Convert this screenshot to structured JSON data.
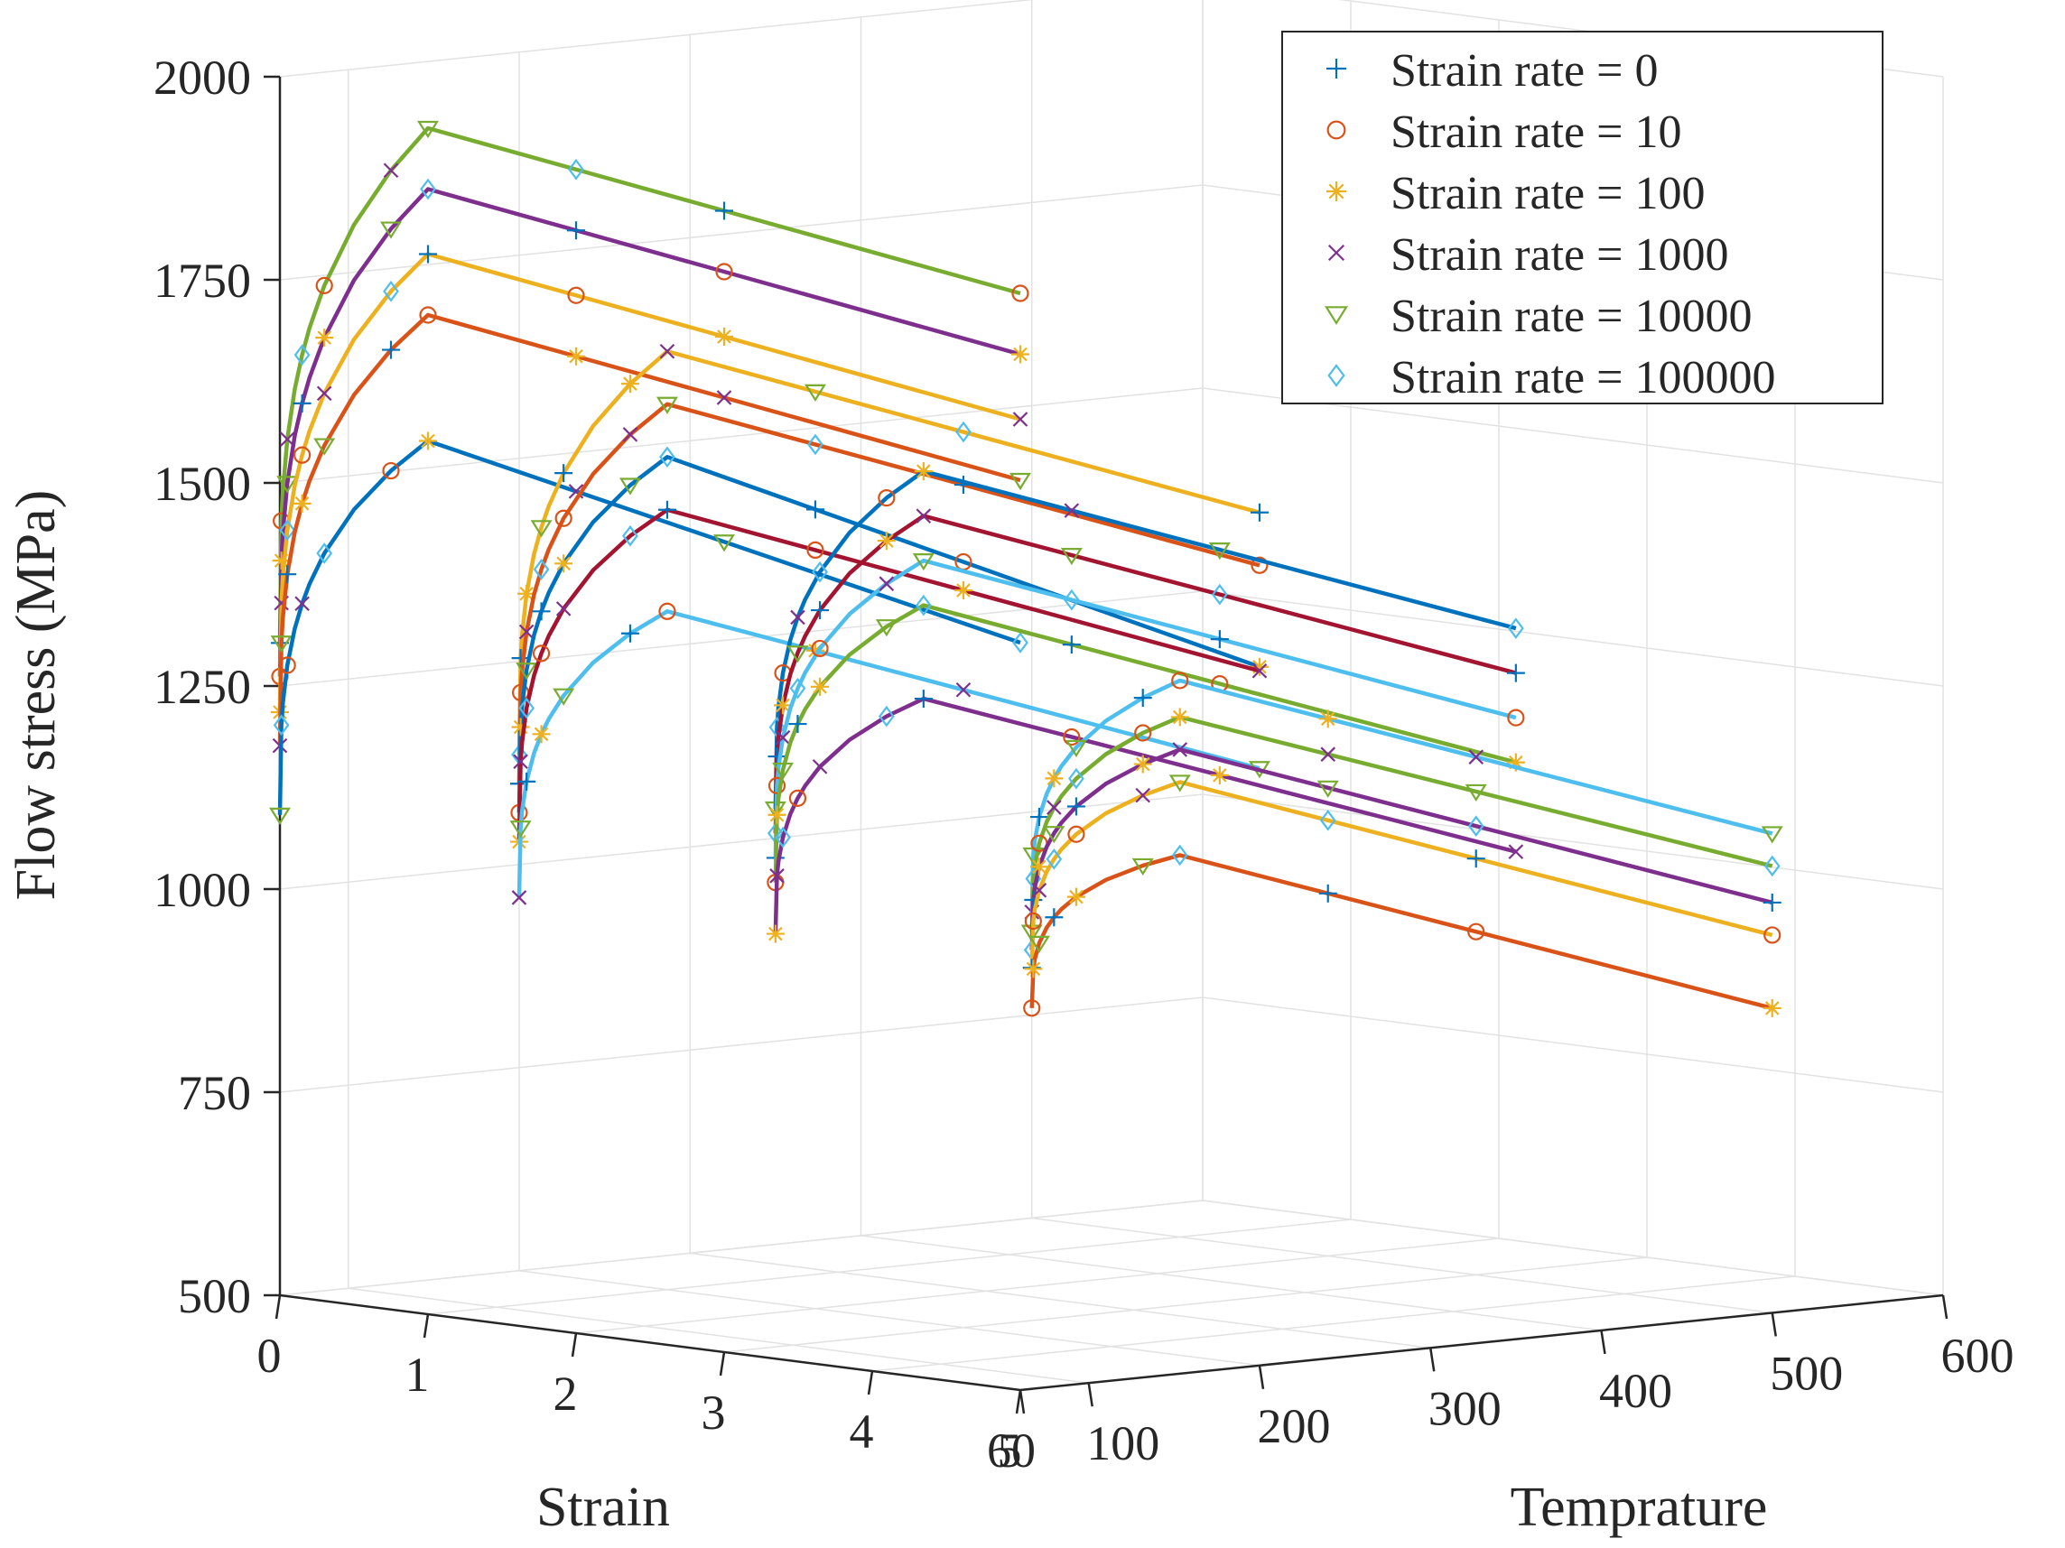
{
  "chart_data": {
    "type": "line",
    "subtype": "3d-line",
    "title": "",
    "xlabel": "Strain",
    "ylabel": "Temprature",
    "zlabel": "Flow stress (MPa)",
    "xlim": [
      0,
      5
    ],
    "ylim": [
      60,
      600
    ],
    "zlim": [
      500,
      2000
    ],
    "x_ticks": [
      "0",
      "1",
      "2",
      "3",
      "4",
      "5"
    ],
    "y_ticks": [
      "60",
      "100",
      "200",
      "300",
      "400",
      "500",
      "600"
    ],
    "z_ticks": [
      "500",
      "750",
      "1000",
      "1250",
      "1500",
      "1750",
      "2000"
    ],
    "grid": true,
    "legend_position": "top-right",
    "legend": [
      {
        "label": "Strain rate = 0",
        "marker": "+",
        "color": "#0072BD"
      },
      {
        "label": "Strain rate = 10",
        "marker": "o",
        "color": "#D95319"
      },
      {
        "label": "Strain rate = 100",
        "marker": "*",
        "color": "#EDB120"
      },
      {
        "label": "Strain rate = 1000",
        "marker": "x",
        "color": "#7E2F8E"
      },
      {
        "label": "Strain rate = 10000",
        "marker": "triangle-down",
        "color": "#77AC30"
      },
      {
        "label": "Strain rate = 100000",
        "marker": "diamond",
        "color": "#4DBEEE"
      }
    ],
    "strain_points": [
      0,
      0.01,
      0.02,
      0.05,
      0.1,
      0.15,
      0.2,
      0.3,
      0.5,
      0.75,
      1.0,
      2.0,
      3.0,
      5.0
    ],
    "series": [
      {
        "temperature": 60,
        "color": "#77AC30",
        "peak": 1960,
        "end": 1850
      },
      {
        "temperature": 60,
        "color": "#7E2F8E",
        "peak": 1885,
        "end": 1775
      },
      {
        "temperature": 60,
        "color": "#EDB120",
        "peak": 1805,
        "end": 1695
      },
      {
        "temperature": 60,
        "color": "#D95319",
        "peak": 1730,
        "end": 1620
      },
      {
        "temperature": 60,
        "color": "#0072BD",
        "peak": 1575,
        "end": 1420
      },
      {
        "temperature": 200,
        "color": "#EDB120",
        "peak": 1655,
        "end": 1550
      },
      {
        "temperature": 200,
        "color": "#D95319",
        "peak": 1590,
        "end": 1485
      },
      {
        "temperature": 200,
        "color": "#0072BD",
        "peak": 1525,
        "end": 1360
      },
      {
        "temperature": 200,
        "color": "#A2142F",
        "peak": 1460,
        "end": 1355
      },
      {
        "temperature": 200,
        "color": "#4DBEEE",
        "peak": 1335,
        "end": 1235
      },
      {
        "temperature": 350,
        "color": "#0072BD",
        "peak": 1475,
        "end": 1375
      },
      {
        "temperature": 350,
        "color": "#A2142F",
        "peak": 1420,
        "end": 1320
      },
      {
        "temperature": 350,
        "color": "#4DBEEE",
        "peak": 1365,
        "end": 1265
      },
      {
        "temperature": 350,
        "color": "#77AC30",
        "peak": 1310,
        "end": 1210
      },
      {
        "temperature": 350,
        "color": "#7E2F8E",
        "peak": 1195,
        "end": 1100
      },
      {
        "temperature": 500,
        "color": "#4DBEEE",
        "peak": 1185,
        "end": 1090
      },
      {
        "temperature": 500,
        "color": "#77AC30",
        "peak": 1140,
        "end": 1050
      },
      {
        "temperature": 500,
        "color": "#7E2F8E",
        "peak": 1100,
        "end": 1005
      },
      {
        "temperature": 500,
        "color": "#EDB120",
        "peak": 1060,
        "end": 965
      },
      {
        "temperature": 500,
        "color": "#D95319",
        "peak": 970,
        "end": 875
      }
    ]
  }
}
